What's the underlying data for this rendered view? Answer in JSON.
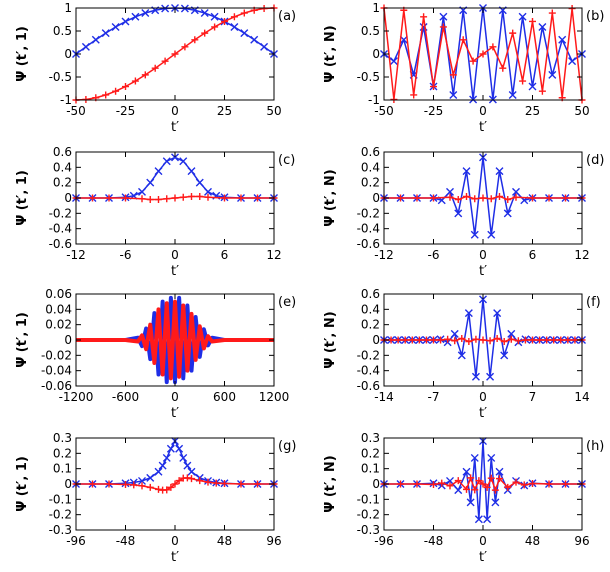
{
  "colors": {
    "blue": "#1f2ee6",
    "red": "#ff1a1a",
    "axis": "#000000"
  },
  "chart_data": [
    {
      "id": "a",
      "type": "line",
      "panel_label": "(a)",
      "xlabel": "t′",
      "ylabel": "Ψ (t′, 1)",
      "xlim": [
        -50,
        50
      ],
      "ylim": [
        -1,
        1
      ],
      "xticks": [
        -50,
        -25,
        0,
        25,
        50
      ],
      "xtick_labels": [
        "-50",
        "-25",
        "0",
        "25",
        "50"
      ],
      "yticks": [
        -1,
        -0.5,
        0,
        0.5,
        1
      ],
      "ytick_labels": [
        "-1",
        "-0.5",
        "0",
        "0.5",
        "1"
      ],
      "series": [
        {
          "color": "blue",
          "marker": "x",
          "x": [
            -50,
            -45,
            -40,
            -35,
            -30,
            -25,
            -20,
            -15,
            -10,
            -5,
            0,
            5,
            10,
            15,
            20,
            25,
            30,
            35,
            40,
            45,
            50
          ],
          "y": [
            0,
            0.156,
            0.309,
            0.454,
            0.588,
            0.707,
            0.809,
            0.891,
            0.951,
            0.988,
            1,
            0.988,
            0.951,
            0.891,
            0.809,
            0.707,
            0.588,
            0.454,
            0.309,
            0.156,
            0
          ]
        },
        {
          "color": "red",
          "marker": "+",
          "x": [
            -50,
            -45,
            -40,
            -35,
            -30,
            -25,
            -20,
            -15,
            -10,
            -5,
            0,
            5,
            10,
            15,
            20,
            25,
            30,
            35,
            40,
            45,
            50
          ],
          "y": [
            -1,
            -0.988,
            -0.951,
            -0.891,
            -0.809,
            -0.707,
            -0.588,
            -0.454,
            -0.309,
            -0.156,
            0,
            0.156,
            0.309,
            0.454,
            0.588,
            0.707,
            0.809,
            0.891,
            0.951,
            0.988,
            1
          ]
        }
      ]
    },
    {
      "id": "b",
      "type": "line",
      "panel_label": "(b)",
      "xlabel": "t′",
      "ylabel": "Ψ (t′, N)",
      "xlim": [
        -50,
        50
      ],
      "ylim": [
        -1,
        1
      ],
      "xticks": [
        -50,
        -25,
        0,
        25,
        50
      ],
      "xtick_labels": [
        "-50",
        "-25",
        "0",
        "25",
        "50"
      ],
      "yticks": [
        -1,
        -0.5,
        0,
        0.5,
        1
      ],
      "ytick_labels": [
        "-1",
        "-0.5",
        "0",
        "0.5",
        "1"
      ],
      "series": [
        {
          "color": "blue",
          "marker": "x",
          "x": [
            -50,
            -45,
            -40,
            -35,
            -30,
            -25,
            -20,
            -15,
            -10,
            -5,
            0,
            5,
            10,
            15,
            20,
            25,
            30,
            35,
            40,
            45,
            50
          ],
          "y": [
            0,
            -0.156,
            0.309,
            -0.454,
            0.588,
            -0.707,
            0.809,
            -0.891,
            0.951,
            -0.988,
            1,
            -0.988,
            0.951,
            -0.891,
            0.809,
            -0.707,
            0.588,
            -0.454,
            0.309,
            -0.156,
            0
          ]
        },
        {
          "color": "red",
          "marker": "+",
          "x": [
            -50,
            -45,
            -40,
            -35,
            -30,
            -25,
            -20,
            -15,
            -10,
            -5,
            0,
            5,
            10,
            15,
            20,
            25,
            30,
            35,
            40,
            45,
            50
          ],
          "y": [
            1,
            -0.988,
            0.951,
            -0.891,
            0.809,
            -0.707,
            0.588,
            -0.454,
            0.309,
            -0.156,
            0,
            0.156,
            -0.309,
            0.454,
            -0.588,
            0.707,
            -0.809,
            0.891,
            -0.951,
            0.988,
            -1
          ]
        }
      ]
    },
    {
      "id": "c",
      "type": "line",
      "panel_label": "(c)",
      "xlabel": "t′",
      "ylabel": "Ψ (t′, 1)",
      "xlim": [
        -12,
        12
      ],
      "ylim": [
        -0.6,
        0.6
      ],
      "xticks": [
        -12,
        -6,
        0,
        6,
        12
      ],
      "xtick_labels": [
        "-12",
        "-6",
        "0",
        "6",
        "12"
      ],
      "yticks": [
        -0.6,
        -0.4,
        -0.2,
        0,
        0.2,
        0.4,
        0.6
      ],
      "ytick_labels": [
        "-0.6",
        "-0.4",
        "-0.2",
        "0",
        "0.2",
        "0.4",
        "0.6"
      ],
      "series": [
        {
          "color": "blue",
          "marker": "x",
          "x": [
            -12,
            -10,
            -8,
            -6,
            -5,
            -4,
            -3,
            -2,
            -1,
            0,
            1,
            2,
            3,
            4,
            5,
            6,
            8,
            10,
            12
          ],
          "y": [
            0,
            0,
            0,
            0.01,
            0.03,
            0.08,
            0.2,
            0.35,
            0.48,
            0.53,
            0.48,
            0.35,
            0.2,
            0.08,
            0.03,
            0.01,
            0,
            0,
            0
          ]
        },
        {
          "color": "red",
          "marker": "+",
          "x": [
            -12,
            -10,
            -8,
            -6,
            -4,
            -3,
            -2,
            -1,
            0,
            1,
            2,
            3,
            4,
            6,
            8,
            10,
            12
          ],
          "y": [
            0,
            0,
            0,
            0,
            -0.01,
            -0.02,
            -0.02,
            -0.01,
            0,
            0.01,
            0.02,
            0.02,
            0.01,
            0,
            0,
            0,
            0
          ]
        }
      ]
    },
    {
      "id": "d",
      "type": "line",
      "panel_label": "(d)",
      "xlabel": "t′",
      "ylabel": "Ψ (t′, N)",
      "xlim": [
        -12,
        12
      ],
      "ylim": [
        -0.6,
        0.6
      ],
      "xticks": [
        -12,
        -6,
        0,
        6,
        12
      ],
      "xtick_labels": [
        "-12",
        "-6",
        "0",
        "6",
        "12"
      ],
      "yticks": [
        -0.6,
        -0.4,
        -0.2,
        0,
        0.2,
        0.4,
        0.6
      ],
      "ytick_labels": [
        "-0.6",
        "-0.4",
        "-0.2",
        "0",
        "0.2",
        "0.4",
        "0.6"
      ],
      "series": [
        {
          "color": "blue",
          "marker": "x",
          "x": [
            -12,
            -10,
            -8,
            -6,
            -5,
            -4,
            -3,
            -2,
            -1,
            0,
            1,
            2,
            3,
            4,
            5,
            6,
            8,
            10,
            12
          ],
          "y": [
            0,
            0,
            0,
            0,
            -0.03,
            0.08,
            -0.2,
            0.35,
            -0.48,
            0.53,
            -0.48,
            0.35,
            -0.2,
            0.08,
            -0.03,
            0,
            0,
            0,
            0
          ]
        },
        {
          "color": "red",
          "marker": "+",
          "x": [
            -12,
            -10,
            -8,
            -6,
            -4,
            -3,
            -2,
            -1,
            0,
            1,
            2,
            3,
            4,
            6,
            8,
            10,
            12
          ],
          "y": [
            0,
            0,
            0,
            0,
            0.01,
            -0.02,
            0.02,
            -0.01,
            0,
            -0.01,
            0.02,
            -0.02,
            0.01,
            0,
            0,
            0,
            0
          ]
        }
      ]
    },
    {
      "id": "e",
      "type": "line",
      "panel_label": "(e)",
      "xlabel": "t′",
      "ylabel": "Ψ (t′, 1)",
      "xlim": [
        -1200,
        1200
      ],
      "ylim": [
        -0.06,
        0.06
      ],
      "xticks": [
        -1200,
        -600,
        0,
        600,
        1200
      ],
      "xtick_labels": [
        "-1200",
        "-600",
        "0",
        "600",
        "1200"
      ],
      "yticks": [
        -0.06,
        -0.04,
        -0.02,
        0,
        0.02,
        0.04,
        0.06
      ],
      "ytick_labels": [
        "-0.06",
        "-0.04",
        "-0.02",
        "0",
        "0.02",
        "0.04",
        "0.06"
      ],
      "series": [
        {
          "color": "blue",
          "marker": "line",
          "x": [
            -1200,
            -900,
            -600,
            -450,
            -400,
            -350,
            -300,
            -250,
            -200,
            -150,
            -100,
            -50,
            0,
            50,
            100,
            150,
            200,
            250,
            300,
            350,
            400,
            450,
            600,
            900,
            1200
          ],
          "y": [
            0,
            0,
            0,
            0.003,
            -0.008,
            0.015,
            -0.025,
            0.035,
            -0.045,
            0.05,
            -0.055,
            0.055,
            -0.055,
            0.055,
            -0.05,
            0.045,
            -0.04,
            0.03,
            -0.022,
            0.014,
            -0.007,
            0.003,
            0,
            0,
            0
          ]
        },
        {
          "color": "red",
          "marker": "line",
          "x": [
            -1200,
            -900,
            -600,
            -450,
            -400,
            -350,
            -300,
            -250,
            -200,
            -150,
            -100,
            -50,
            0,
            50,
            100,
            150,
            200,
            250,
            300,
            350,
            400,
            450,
            600,
            900,
            1200
          ],
          "y": [
            0,
            0,
            0,
            -0.002,
            0.006,
            -0.012,
            0.02,
            -0.03,
            0.04,
            -0.045,
            0.048,
            -0.05,
            0.05,
            -0.048,
            0.045,
            -0.04,
            0.034,
            -0.026,
            0.018,
            -0.011,
            0.005,
            -0.002,
            0,
            0,
            0
          ]
        }
      ]
    },
    {
      "id": "f",
      "type": "line",
      "panel_label": "(f)",
      "xlabel": "t′",
      "ylabel": "Ψ (t′, N)",
      "xlim": [
        -14,
        14
      ],
      "ylim": [
        -0.6,
        0.6
      ],
      "xticks": [
        -14,
        -7,
        0,
        7,
        14
      ],
      "xtick_labels": [
        "-14",
        "-7",
        "0",
        "7",
        "14"
      ],
      "yticks": [
        -0.6,
        -0.4,
        -0.2,
        0,
        0.2,
        0.4,
        0.6
      ],
      "ytick_labels": [
        "-0.6",
        "-0.4",
        "-0.2",
        "0",
        "0.2",
        "0.4",
        "0.6"
      ],
      "series": [
        {
          "color": "blue",
          "marker": "x",
          "x": [
            -14,
            -13,
            -12,
            -11,
            -10,
            -9,
            -8,
            -7,
            -6,
            -5,
            -4,
            -3,
            -2,
            -1,
            0,
            1,
            2,
            3,
            4,
            5,
            6,
            7,
            8,
            9,
            10,
            11,
            12,
            13,
            14
          ],
          "y": [
            0,
            0,
            0,
            0,
            0,
            0,
            0,
            0,
            0.01,
            -0.03,
            0.08,
            -0.2,
            0.35,
            -0.48,
            0.53,
            -0.48,
            0.35,
            -0.2,
            0.08,
            -0.03,
            0.01,
            0,
            0,
            0,
            0,
            0,
            0,
            0,
            0
          ]
        },
        {
          "color": "red",
          "marker": "+",
          "x": [
            -14,
            -13,
            -12,
            -11,
            -10,
            -9,
            -8,
            -7,
            -6,
            -5,
            -4,
            -3,
            -2,
            -1,
            0,
            1,
            2,
            3,
            4,
            5,
            6,
            7,
            8,
            9,
            10,
            11,
            12,
            13,
            14
          ],
          "y": [
            0,
            0,
            0,
            0,
            0,
            0,
            0,
            0,
            0,
            0.01,
            -0.01,
            0.02,
            -0.02,
            0.01,
            0,
            -0.01,
            0.02,
            -0.02,
            0.01,
            -0.01,
            0,
            0,
            0,
            0,
            0,
            0,
            0,
            0,
            0
          ]
        }
      ]
    },
    {
      "id": "g",
      "type": "line",
      "panel_label": "(g)",
      "xlabel": "t′",
      "ylabel": "Ψ (t′, 1)",
      "xlim": [
        -96,
        96
      ],
      "ylim": [
        -0.3,
        0.3
      ],
      "xticks": [
        -96,
        -48,
        0,
        48,
        96
      ],
      "xtick_labels": [
        "-96",
        "-48",
        "0",
        "48",
        "96"
      ],
      "yticks": [
        -0.3,
        -0.2,
        -0.1,
        0,
        0.1,
        0.2,
        0.3
      ],
      "ytick_labels": [
        "-0.3",
        "-0.2",
        "-0.1",
        "0",
        "0.1",
        "0.2",
        "0.3"
      ],
      "series": [
        {
          "color": "blue",
          "marker": "x",
          "x": [
            -96,
            -80,
            -64,
            -48,
            -40,
            -32,
            -24,
            -16,
            -12,
            -8,
            -4,
            0,
            4,
            8,
            12,
            16,
            24,
            32,
            40,
            48,
            64,
            80,
            96
          ],
          "y": [
            0,
            0,
            0,
            0.005,
            0.01,
            0.02,
            0.04,
            0.08,
            0.12,
            0.17,
            0.23,
            0.28,
            0.23,
            0.17,
            0.12,
            0.08,
            0.04,
            0.02,
            0.01,
            0.005,
            0,
            0,
            0
          ]
        },
        {
          "color": "red",
          "marker": "+",
          "x": [
            -96,
            -80,
            -64,
            -48,
            -40,
            -32,
            -24,
            -16,
            -12,
            -8,
            -4,
            0,
            4,
            8,
            12,
            16,
            24,
            32,
            40,
            48,
            64,
            80,
            96
          ],
          "y": [
            0,
            0,
            0,
            -0.003,
            -0.006,
            -0.012,
            -0.022,
            -0.035,
            -0.04,
            -0.038,
            -0.022,
            0,
            0.022,
            0.038,
            0.04,
            0.035,
            0.022,
            0.012,
            0.006,
            0.003,
            0,
            0,
            0
          ]
        }
      ]
    },
    {
      "id": "h",
      "type": "line",
      "panel_label": "(h)",
      "xlabel": "t′",
      "ylabel": "Ψ (t′, N)",
      "xlim": [
        -96,
        96
      ],
      "ylim": [
        -0.3,
        0.3
      ],
      "xticks": [
        -96,
        -48,
        0,
        48,
        96
      ],
      "xtick_labels": [
        "-96",
        "-48",
        "0",
        "48",
        "96"
      ],
      "yticks": [
        -0.3,
        -0.2,
        -0.1,
        0,
        0.1,
        0.2,
        0.3
      ],
      "ytick_labels": [
        "-0.3",
        "-0.2",
        "-0.1",
        "0",
        "0.1",
        "0.2",
        "0.3"
      ],
      "series": [
        {
          "color": "blue",
          "marker": "x",
          "x": [
            -96,
            -80,
            -64,
            -48,
            -40,
            -32,
            -24,
            -16,
            -12,
            -8,
            -4,
            0,
            4,
            8,
            12,
            16,
            24,
            32,
            40,
            48,
            64,
            80,
            96
          ],
          "y": [
            0,
            0,
            0,
            0.005,
            -0.01,
            0.02,
            -0.04,
            0.08,
            -0.12,
            0.17,
            -0.23,
            0.28,
            -0.23,
            0.17,
            -0.12,
            0.08,
            -0.04,
            0.02,
            -0.01,
            0.005,
            0,
            0,
            0
          ]
        },
        {
          "color": "red",
          "marker": "+",
          "x": [
            -96,
            -80,
            -64,
            -48,
            -40,
            -32,
            -24,
            -16,
            -12,
            -8,
            -4,
            0,
            4,
            8,
            12,
            16,
            24,
            32,
            40,
            48,
            64,
            80,
            96
          ],
          "y": [
            0,
            0,
            0,
            -0.003,
            0.006,
            -0.012,
            0.022,
            -0.035,
            0.04,
            -0.038,
            0.022,
            0,
            -0.022,
            0.038,
            -0.04,
            0.035,
            -0.022,
            0.012,
            -0.006,
            0.003,
            0,
            0,
            0
          ]
        }
      ]
    }
  ]
}
